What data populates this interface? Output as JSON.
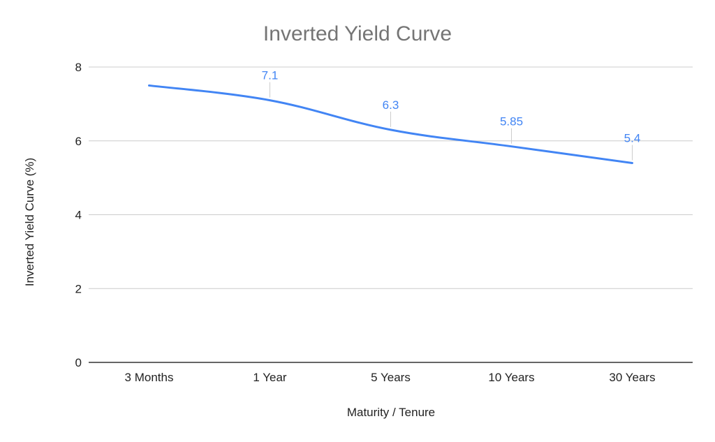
{
  "chart_data": {
    "type": "line",
    "title": "Inverted Yield Curve",
    "xlabel": "Maturity / Tenure",
    "ylabel": "Inverted Yield Curve (%)",
    "categories": [
      "3 Months",
      "1 Year",
      "5 Years",
      "10 Years",
      "30 Years"
    ],
    "series": [
      {
        "values": [
          7.5,
          7.1,
          6.3,
          5.85,
          5.4
        ],
        "data_labels": [
          "",
          "7.1",
          "6.3",
          "5.85",
          "5.4"
        ],
        "color": "#4285f4"
      }
    ],
    "ylim": [
      0,
      8
    ],
    "yticks": [
      0,
      2,
      4,
      6,
      8
    ],
    "grid": true,
    "legend": "none",
    "line_style": "smooth"
  }
}
